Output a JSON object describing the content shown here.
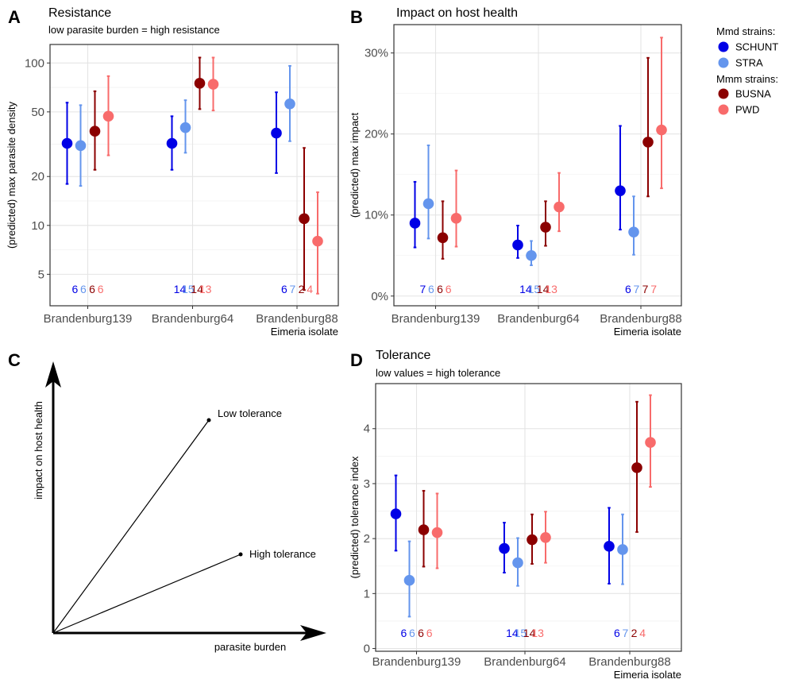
{
  "panel_letters": {
    "a": "A",
    "b": "B",
    "c": "C",
    "d": "D"
  },
  "legend": {
    "group1_title": "Mmd strains:",
    "group2_title": "Mmm strains:",
    "items": [
      {
        "label": "SCHUNT",
        "color": "#0000e6"
      },
      {
        "label": "STRA",
        "color": "#6495ed"
      },
      {
        "label": "BUSNA",
        "color": "#8b0000"
      },
      {
        "label": "PWD",
        "color": "#f86b6b"
      }
    ]
  },
  "diagram": {
    "ylabel": "impact on host health",
    "xlabel": "parasite burden",
    "low_label": "Low tolerance",
    "high_label": "High tolerance"
  },
  "chart_data": [
    {
      "id": "A",
      "type": "scatter",
      "title": "Resistance",
      "subtitle": "low parasite burden = high resistance",
      "ylabel": "(predicted) max parasite density",
      "xlabel": "Eimeria isolate",
      "y_scale": "log",
      "ylim": [
        3.2,
        130
      ],
      "yticks": [
        5,
        10,
        20,
        50,
        100
      ],
      "ytick_labels": [
        "5",
        "10",
        "20",
        "50",
        "100"
      ],
      "categories": [
        "Brandenburg139",
        "Brandenburg64",
        "Brandenburg88"
      ],
      "series": [
        {
          "name": "SCHUNT",
          "values": [
            32,
            32,
            37
          ],
          "lower": [
            18,
            22,
            21
          ],
          "upper": [
            57,
            47,
            66
          ],
          "n": [
            "6",
            "14",
            "6"
          ]
        },
        {
          "name": "STRA",
          "values": [
            31,
            40,
            56
          ],
          "lower": [
            17.5,
            28,
            33
          ],
          "upper": [
            55,
            59,
            96
          ],
          "n": [
            "6",
            "15",
            "7"
          ]
        },
        {
          "name": "BUSNA",
          "values": [
            38,
            75,
            11
          ],
          "lower": [
            22,
            52,
            4
          ],
          "upper": [
            67,
            108,
            30
          ],
          "n": [
            "6",
            "14",
            "2"
          ]
        },
        {
          "name": "PWD",
          "values": [
            47,
            74,
            8
          ],
          "lower": [
            27,
            51,
            3.8
          ],
          "upper": [
            83,
            108,
            16
          ],
          "n": [
            "6",
            "13",
            "4"
          ]
        }
      ]
    },
    {
      "id": "B",
      "type": "scatter",
      "title": "Impact on host health",
      "subtitle": "",
      "ylabel": "(predicted) max impact",
      "xlabel": "Eimeria isolate",
      "ylim": [
        -1.2,
        33.5
      ],
      "yticks": [
        0,
        10,
        20,
        30
      ],
      "ytick_labels": [
        "0%",
        "10%",
        "20%",
        "30%"
      ],
      "categories": [
        "Brandenburg139",
        "Brandenburg64",
        "Brandenburg88"
      ],
      "series": [
        {
          "name": "SCHUNT",
          "values": [
            9.0,
            6.3,
            13.0
          ],
          "lower": [
            6.0,
            4.7,
            8.2
          ],
          "upper": [
            14.1,
            8.7,
            21.0
          ],
          "n": [
            "7",
            "14",
            "6"
          ]
        },
        {
          "name": "STRA",
          "values": [
            11.4,
            5.0,
            7.9
          ],
          "lower": [
            7.1,
            3.8,
            5.1
          ],
          "upper": [
            18.6,
            6.8,
            12.3
          ],
          "n": [
            "6",
            "15",
            "7"
          ]
        },
        {
          "name": "BUSNA",
          "values": [
            7.2,
            8.5,
            19.0
          ],
          "lower": [
            4.6,
            6.2,
            12.3
          ],
          "upper": [
            11.7,
            11.7,
            29.4
          ],
          "n": [
            "6",
            "14",
            "7"
          ]
        },
        {
          "name": "PWD",
          "values": [
            9.6,
            11.0,
            20.5
          ],
          "lower": [
            6.1,
            8.0,
            13.3
          ],
          "upper": [
            15.5,
            15.2,
            31.9
          ],
          "n": [
            "6",
            "13",
            "7"
          ]
        }
      ]
    },
    {
      "id": "D",
      "type": "scatter",
      "title": "Tolerance",
      "subtitle": "low values = high tolerance",
      "ylabel": "(predicted) tolerance index",
      "xlabel": "Eimeria isolate",
      "ylim": [
        -0.05,
        4.82
      ],
      "yticks": [
        0,
        1,
        2,
        3,
        4
      ],
      "ytick_labels": [
        "0",
        "1",
        "2",
        "3",
        "4"
      ],
      "categories": [
        "Brandenburg139",
        "Brandenburg64",
        "Brandenburg88"
      ],
      "series": [
        {
          "name": "SCHUNT",
          "values": [
            2.45,
            1.82,
            1.86
          ],
          "lower": [
            1.78,
            1.38,
            1.18
          ],
          "upper": [
            3.15,
            2.29,
            2.56
          ],
          "n": [
            "6",
            "14",
            "6"
          ]
        },
        {
          "name": "STRA",
          "values": [
            1.24,
            1.56,
            1.8
          ],
          "lower": [
            0.58,
            1.14,
            1.17
          ],
          "upper": [
            1.95,
            2.01,
            2.44
          ],
          "n": [
            "6",
            "15",
            "7"
          ]
        },
        {
          "name": "BUSNA",
          "values": [
            2.16,
            1.98,
            3.29
          ],
          "lower": [
            1.49,
            1.54,
            2.12
          ],
          "upper": [
            2.87,
            2.44,
            4.49
          ],
          "n": [
            "6",
            "14",
            "2"
          ]
        },
        {
          "name": "PWD",
          "values": [
            2.11,
            2.02,
            3.75
          ],
          "lower": [
            1.46,
            1.56,
            2.94
          ],
          "upper": [
            2.82,
            2.49,
            4.61
          ],
          "n": [
            "6",
            "13",
            "4"
          ]
        }
      ]
    }
  ]
}
